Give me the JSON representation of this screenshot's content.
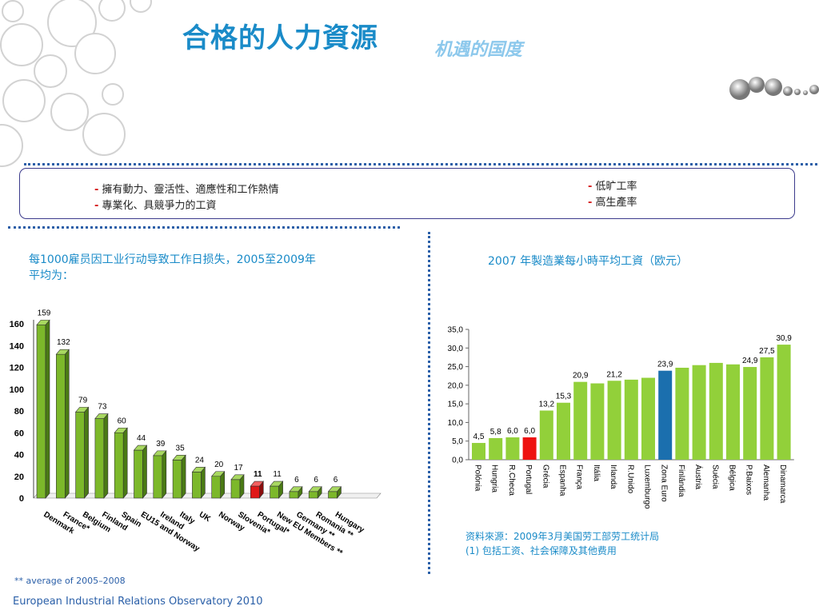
{
  "header": {
    "title": "合格的人力資源",
    "subtitle": "机遇的国度"
  },
  "box": {
    "left_items": [
      "擁有動力、靈活性、適應性和工作熱情",
      "專業化、具競爭力的工資"
    ],
    "right_items": [
      "低旷工率",
      "高生產率"
    ],
    "dash": "-"
  },
  "left_chart": {
    "heading_line1": "每1000雇员因工业行动导致工作日损失，2005至2009年",
    "heading_line2": "平均为：",
    "note_stars": "**",
    "note": " average of 2005–2008"
  },
  "right_chart": {
    "heading": "2007 年製造業每小時平均工資（欧元）",
    "source_line1": "资料來源：2009年3月美国劳工部劳工统计局",
    "source_line2": "(1) 包括工资、社会保障及其他费用"
  },
  "footer": "European Industrial Relations Observatory  2010",
  "chart_data": [
    {
      "type": "bar",
      "categories": [
        "Denmark",
        "France*",
        "Belgium",
        "Finland",
        "Spain",
        "EU15 and Norway",
        "Ireland",
        "Italy",
        "UK",
        "Norway",
        "Slovenia*",
        "Portugal*",
        "New EU Members **",
        "Germany **",
        "Romania **",
        "Hungary"
      ],
      "values": [
        159,
        132,
        79,
        73,
        60,
        44,
        39,
        35,
        24,
        20,
        17,
        11,
        11,
        6,
        6,
        6
      ],
      "value_labels": [
        "159",
        "132",
        "79",
        "73",
        "60",
        "44",
        "39",
        "35",
        "24",
        "20",
        "17",
        "11",
        "11",
        "6",
        "6",
        "6"
      ],
      "y_ticks": [
        "0",
        "20",
        "40",
        "60",
        "80",
        "100",
        "120",
        "140",
        "160"
      ],
      "ylim": [
        0,
        160
      ],
      "highlight_index": 11,
      "colors": {
        "bar": "#7cb82a",
        "highlight": "#e01818"
      }
    },
    {
      "type": "bar",
      "categories": [
        "Polónia",
        "Hungria",
        "R.Checa",
        "Portugal",
        "Grécia",
        "Espanha",
        "França",
        "Itália",
        "Irlanda",
        "R.Unido",
        "Luxemburgo",
        "Zona Euro",
        "Finlândia",
        "Áustria",
        "Suécia",
        "Bélgica",
        "P.Baixos",
        "Alemanha",
        "Dinamarca"
      ],
      "values": [
        4.5,
        5.8,
        6.0,
        6.0,
        13.2,
        15.3,
        20.9,
        20.5,
        21.2,
        21.5,
        22.0,
        23.9,
        24.7,
        25.4,
        26.0,
        25.6,
        24.9,
        27.5,
        30.9
      ],
      "value_labels": [
        "4,5",
        "5,8",
        "6,0",
        "6,0",
        "13,2",
        "15,3",
        "20,9",
        "",
        "21,2",
        "",
        "",
        "23,9",
        "",
        "",
        "",
        "",
        "24,9",
        "27,5",
        "30,9"
      ],
      "y_ticks": [
        "0,0",
        "5,0",
        "10,0",
        "15,0",
        "20,0",
        "25,0",
        "30,0",
        "35,0"
      ],
      "ylim": [
        0,
        35
      ],
      "colors": {
        "bar": "#92d03a",
        "portugal": "#ee1111",
        "eurozone": "#1b6fae"
      }
    }
  ]
}
